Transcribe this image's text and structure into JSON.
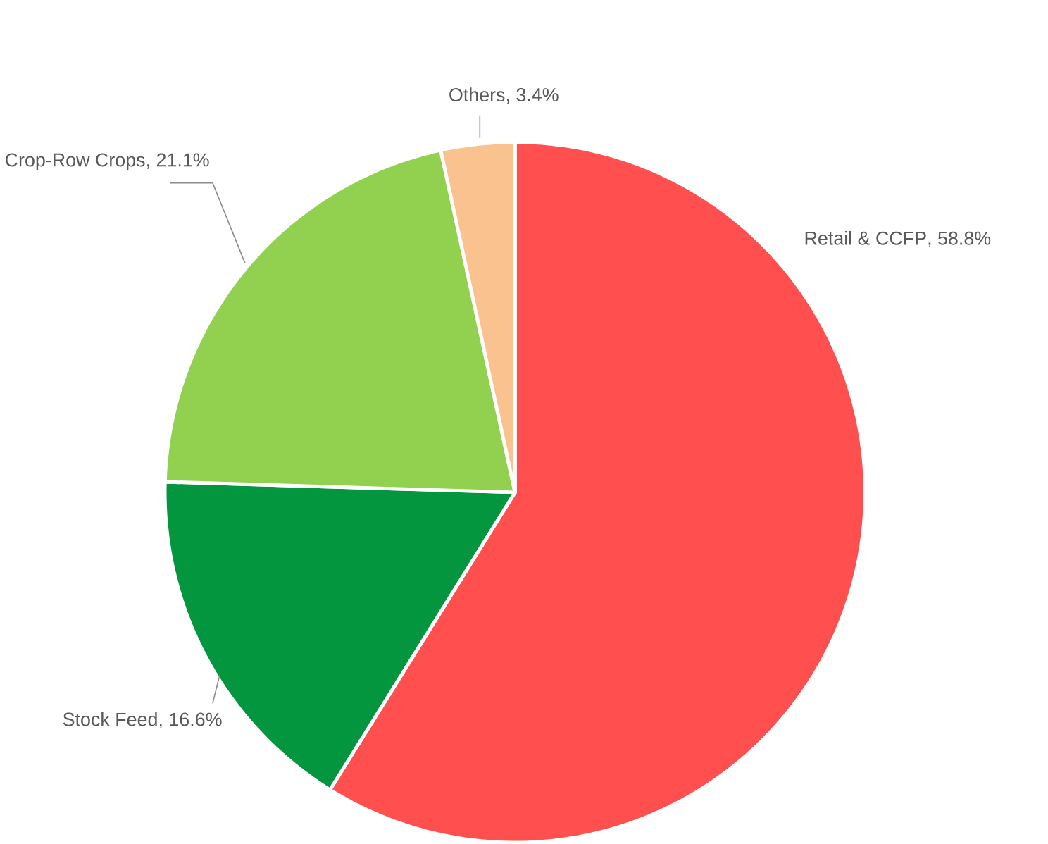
{
  "chart_data": {
    "type": "pie",
    "categories": [
      "Retail & CCFP",
      "Stock Feed",
      "Crop-Row Crops",
      "Others"
    ],
    "values": [
      58.8,
      16.6,
      21.1,
      3.4
    ],
    "colors": [
      "#ff4f4f",
      "#03963f",
      "#92d050",
      "#f9c28f"
    ],
    "value_labels": [
      ", 58.8%",
      ", 16.6%",
      ", 21.1%",
      ", 3.4%"
    ]
  }
}
